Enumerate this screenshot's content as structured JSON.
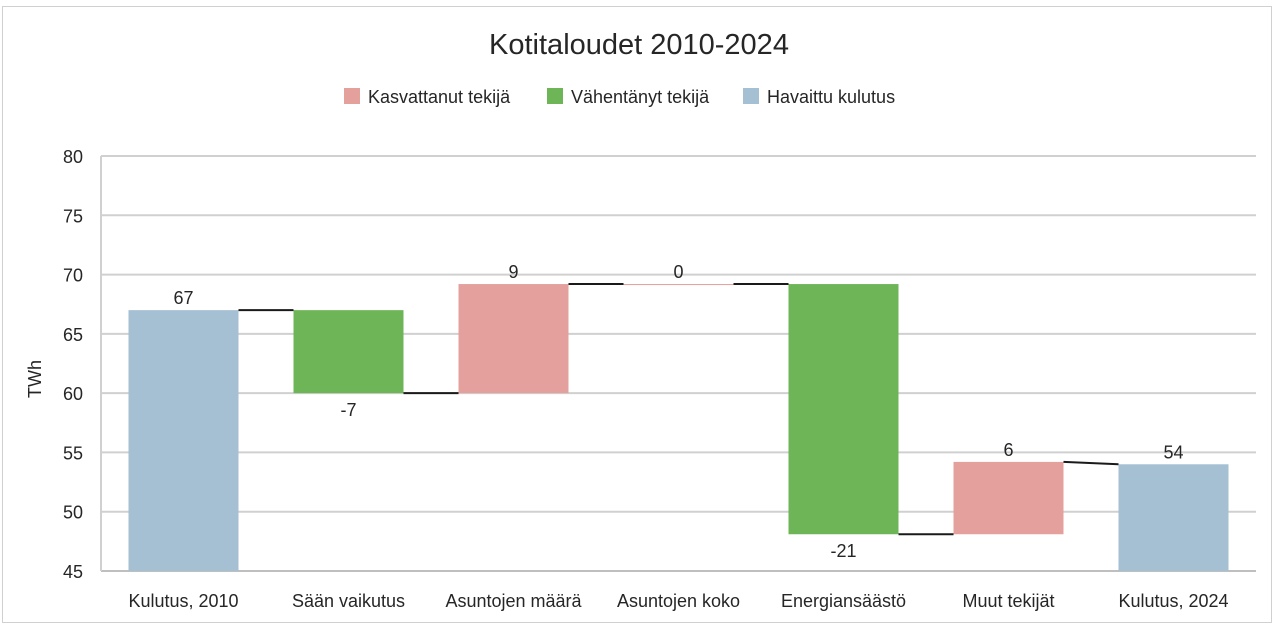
{
  "chart_data": {
    "type": "bar",
    "subtype": "waterfall",
    "title": "Kotitaloudet 2010-2024",
    "ylabel": "TWh",
    "xlabel": "",
    "ylim": [
      45,
      80
    ],
    "yticks": [
      80,
      75,
      70,
      65,
      60,
      55,
      50,
      45
    ],
    "grid": true,
    "legend_position": "top",
    "legend": [
      {
        "label": "Kasvattanut tekijä",
        "color": "#e3a09d"
      },
      {
        "label": "Vähentänyt tekijä",
        "color": "#6db557"
      },
      {
        "label": "Havaittu kulutus",
        "color": "#a5bfd3"
      }
    ],
    "categories": [
      "Kulutus, 2010",
      "Sään vaikutus",
      "Asuntojen määrä",
      "Asuntojen koko",
      "Energiansäästö",
      "Muut tekijät",
      "Kulutus, 2024"
    ],
    "values": [
      67,
      -7,
      9,
      0,
      -21,
      6,
      54
    ],
    "data_labels": [
      "67",
      "-7",
      "9",
      "0",
      "-21",
      "6",
      "54"
    ],
    "bar_kinds": [
      "total",
      "decrease",
      "increase",
      "increase",
      "decrease",
      "increase",
      "total"
    ],
    "bars": [
      {
        "category": "Kulutus, 2010",
        "start": 45,
        "end": 67
      },
      {
        "category": "Sään vaikutus",
        "start": 67,
        "end": 60
      },
      {
        "category": "Asuntojen määrä",
        "start": 60,
        "end": 69.2
      },
      {
        "category": "Asuntojen koko",
        "start": 69.2,
        "end": 69.2
      },
      {
        "category": "Energiansäästö",
        "start": 69.2,
        "end": 48.1
      },
      {
        "category": "Muut tekijät",
        "start": 48.1,
        "end": 54.2
      },
      {
        "category": "Kulutus, 2024",
        "start": 45,
        "end": 54
      }
    ]
  }
}
